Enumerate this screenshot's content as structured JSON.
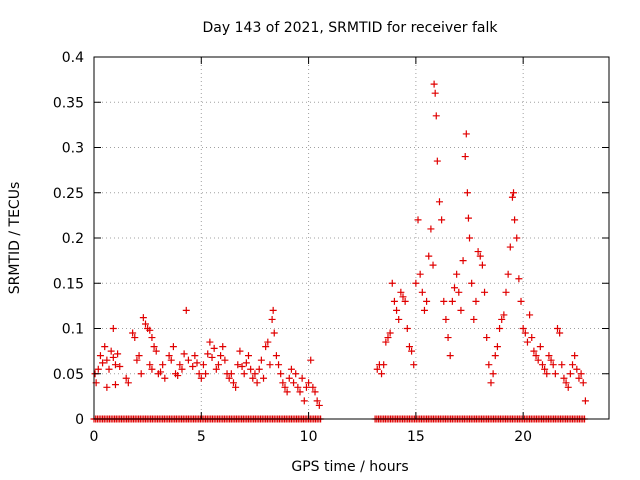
{
  "chart_data": {
    "type": "scatter",
    "title": "Day 143 of 2021, SRMTID for receiver falk",
    "xlabel": "GPS time / hours",
    "ylabel": "SRMTID / TECUs",
    "xlim": [
      0,
      24
    ],
    "ylim": [
      0,
      0.4
    ],
    "x_ticks": [
      0,
      5,
      10,
      15,
      20
    ],
    "y_ticks": [
      0,
      0.05,
      0.1,
      0.15,
      0.2,
      0.25,
      0.3,
      0.35,
      0.4
    ],
    "x_tick_labels": [
      "0",
      "5",
      "10",
      "15",
      "20"
    ],
    "y_tick_labels": [
      "0",
      "0.05",
      "0.1",
      "0.15",
      "0.2",
      "0.25",
      "0.3",
      "0.35",
      "0.4"
    ],
    "grid": true,
    "marker": "+",
    "color": "#e00000",
    "series": [
      {
        "name": "SRMTID",
        "points": [
          [
            0.05,
            0.05
          ],
          [
            0.1,
            0.04
          ],
          [
            0.2,
            0.055
          ],
          [
            0.3,
            0.07
          ],
          [
            0.4,
            0.062
          ],
          [
            0.5,
            0.08
          ],
          [
            0.6,
            0.065
          ],
          [
            0.7,
            0.055
          ],
          [
            0.8,
            0.075
          ],
          [
            0.9,
            0.068
          ],
          [
            1.0,
            0.06
          ],
          [
            1.1,
            0.072
          ],
          [
            1.2,
            0.058
          ],
          [
            0.9,
            0.1
          ],
          [
            1.0,
            0.038
          ],
          [
            0.6,
            0.035
          ],
          [
            1.5,
            0.045
          ],
          [
            1.6,
            0.04
          ],
          [
            1.8,
            0.095
          ],
          [
            1.9,
            0.09
          ],
          [
            2.0,
            0.065
          ],
          [
            2.1,
            0.07
          ],
          [
            2.2,
            0.05
          ],
          [
            2.3,
            0.112
          ],
          [
            2.4,
            0.105
          ],
          [
            2.5,
            0.1
          ],
          [
            2.6,
            0.098
          ],
          [
            2.7,
            0.09
          ],
          [
            2.6,
            0.06
          ],
          [
            2.7,
            0.055
          ],
          [
            2.8,
            0.08
          ],
          [
            2.9,
            0.075
          ],
          [
            3.0,
            0.05
          ],
          [
            3.1,
            0.052
          ],
          [
            3.2,
            0.06
          ],
          [
            3.3,
            0.045
          ],
          [
            3.5,
            0.07
          ],
          [
            3.6,
            0.065
          ],
          [
            3.7,
            0.08
          ],
          [
            3.8,
            0.05
          ],
          [
            3.9,
            0.048
          ],
          [
            4.0,
            0.06
          ],
          [
            4.1,
            0.055
          ],
          [
            4.2,
            0.072
          ],
          [
            4.3,
            0.12
          ],
          [
            4.4,
            0.065
          ],
          [
            4.6,
            0.058
          ],
          [
            4.7,
            0.07
          ],
          [
            4.8,
            0.062
          ],
          [
            4.9,
            0.05
          ],
          [
            5.0,
            0.045
          ],
          [
            5.1,
            0.06
          ],
          [
            5.2,
            0.05
          ],
          [
            5.3,
            0.072
          ],
          [
            5.4,
            0.085
          ],
          [
            5.5,
            0.068
          ],
          [
            5.6,
            0.078
          ],
          [
            5.7,
            0.055
          ],
          [
            5.8,
            0.06
          ],
          [
            5.9,
            0.07
          ],
          [
            6.0,
            0.08
          ],
          [
            6.1,
            0.065
          ],
          [
            6.2,
            0.05
          ],
          [
            6.3,
            0.045
          ],
          [
            6.4,
            0.05
          ],
          [
            6.5,
            0.04
          ],
          [
            6.6,
            0.035
          ],
          [
            6.7,
            0.06
          ],
          [
            6.8,
            0.075
          ],
          [
            6.9,
            0.058
          ],
          [
            7.0,
            0.05
          ],
          [
            7.1,
            0.062
          ],
          [
            7.2,
            0.07
          ],
          [
            7.3,
            0.055
          ],
          [
            7.4,
            0.045
          ],
          [
            7.5,
            0.05
          ],
          [
            7.6,
            0.04
          ],
          [
            7.7,
            0.055
          ],
          [
            7.8,
            0.065
          ],
          [
            7.9,
            0.045
          ],
          [
            8.0,
            0.08
          ],
          [
            8.1,
            0.085
          ],
          [
            8.2,
            0.06
          ],
          [
            8.3,
            0.11
          ],
          [
            8.35,
            0.12
          ],
          [
            8.4,
            0.095
          ],
          [
            8.5,
            0.07
          ],
          [
            8.6,
            0.06
          ],
          [
            8.7,
            0.05
          ],
          [
            8.8,
            0.04
          ],
          [
            8.9,
            0.035
          ],
          [
            9.0,
            0.03
          ],
          [
            9.1,
            0.045
          ],
          [
            9.2,
            0.055
          ],
          [
            9.3,
            0.04
          ],
          [
            9.4,
            0.05
          ],
          [
            9.5,
            0.035
          ],
          [
            9.6,
            0.03
          ],
          [
            9.7,
            0.045
          ],
          [
            9.8,
            0.02
          ],
          [
            9.9,
            0.035
          ],
          [
            10.0,
            0.04
          ],
          [
            10.1,
            0.065
          ],
          [
            10.2,
            0.035
          ],
          [
            10.3,
            0.03
          ],
          [
            10.4,
            0.02
          ],
          [
            10.5,
            0.015
          ],
          [
            13.2,
            0.055
          ],
          [
            13.3,
            0.06
          ],
          [
            13.4,
            0.05
          ],
          [
            13.5,
            0.06
          ],
          [
            13.6,
            0.085
          ],
          [
            13.7,
            0.09
          ],
          [
            13.8,
            0.095
          ],
          [
            13.9,
            0.15
          ],
          [
            14.0,
            0.13
          ],
          [
            14.1,
            0.12
          ],
          [
            14.2,
            0.11
          ],
          [
            14.3,
            0.14
          ],
          [
            14.4,
            0.135
          ],
          [
            14.5,
            0.13
          ],
          [
            14.6,
            0.1
          ],
          [
            14.7,
            0.08
          ],
          [
            14.8,
            0.075
          ],
          [
            14.9,
            0.06
          ],
          [
            15.0,
            0.15
          ],
          [
            15.1,
            0.22
          ],
          [
            15.2,
            0.16
          ],
          [
            15.3,
            0.14
          ],
          [
            15.4,
            0.12
          ],
          [
            15.5,
            0.13
          ],
          [
            15.6,
            0.18
          ],
          [
            15.7,
            0.21
          ],
          [
            15.8,
            0.17
          ],
          [
            15.85,
            0.37
          ],
          [
            15.9,
            0.36
          ],
          [
            15.95,
            0.335
          ],
          [
            16.0,
            0.285
          ],
          [
            16.1,
            0.24
          ],
          [
            16.2,
            0.22
          ],
          [
            16.3,
            0.13
          ],
          [
            16.4,
            0.11
          ],
          [
            16.5,
            0.09
          ],
          [
            16.6,
            0.07
          ],
          [
            16.7,
            0.13
          ],
          [
            16.8,
            0.145
          ],
          [
            16.9,
            0.16
          ],
          [
            17.0,
            0.14
          ],
          [
            17.1,
            0.12
          ],
          [
            17.2,
            0.175
          ],
          [
            17.3,
            0.29
          ],
          [
            17.35,
            0.315
          ],
          [
            17.4,
            0.25
          ],
          [
            17.45,
            0.222
          ],
          [
            17.5,
            0.2
          ],
          [
            17.6,
            0.15
          ],
          [
            17.7,
            0.11
          ],
          [
            17.8,
            0.13
          ],
          [
            17.9,
            0.185
          ],
          [
            18.0,
            0.18
          ],
          [
            18.1,
            0.17
          ],
          [
            18.2,
            0.14
          ],
          [
            18.3,
            0.09
          ],
          [
            18.4,
            0.06
          ],
          [
            18.5,
            0.04
          ],
          [
            18.6,
            0.05
          ],
          [
            18.7,
            0.07
          ],
          [
            18.8,
            0.08
          ],
          [
            18.9,
            0.1
          ],
          [
            19.0,
            0.11
          ],
          [
            19.1,
            0.115
          ],
          [
            19.2,
            0.14
          ],
          [
            19.3,
            0.16
          ],
          [
            19.4,
            0.19
          ],
          [
            19.5,
            0.245
          ],
          [
            19.55,
            0.25
          ],
          [
            19.6,
            0.22
          ],
          [
            19.7,
            0.2
          ],
          [
            19.8,
            0.155
          ],
          [
            19.9,
            0.13
          ],
          [
            20.0,
            0.1
          ],
          [
            20.1,
            0.095
          ],
          [
            20.2,
            0.085
          ],
          [
            20.3,
            0.115
          ],
          [
            20.4,
            0.09
          ],
          [
            20.5,
            0.075
          ],
          [
            20.6,
            0.07
          ],
          [
            20.7,
            0.065
          ],
          [
            20.8,
            0.08
          ],
          [
            20.9,
            0.06
          ],
          [
            21.0,
            0.055
          ],
          [
            21.1,
            0.05
          ],
          [
            21.2,
            0.07
          ],
          [
            21.3,
            0.065
          ],
          [
            21.4,
            0.06
          ],
          [
            21.5,
            0.05
          ],
          [
            21.6,
            0.1
          ],
          [
            21.7,
            0.095
          ],
          [
            21.8,
            0.06
          ],
          [
            21.9,
            0.045
          ],
          [
            22.0,
            0.04
          ],
          [
            22.1,
            0.035
          ],
          [
            22.2,
            0.05
          ],
          [
            22.3,
            0.06
          ],
          [
            22.4,
            0.07
          ],
          [
            22.5,
            0.055
          ],
          [
            22.6,
            0.045
          ],
          [
            22.7,
            0.05
          ],
          [
            22.8,
            0.04
          ],
          [
            22.9,
            0.02
          ]
        ]
      }
    ],
    "zero_line_segments": [
      [
        0.0,
        10.6
      ],
      [
        13.1,
        22.9
      ]
    ]
  }
}
